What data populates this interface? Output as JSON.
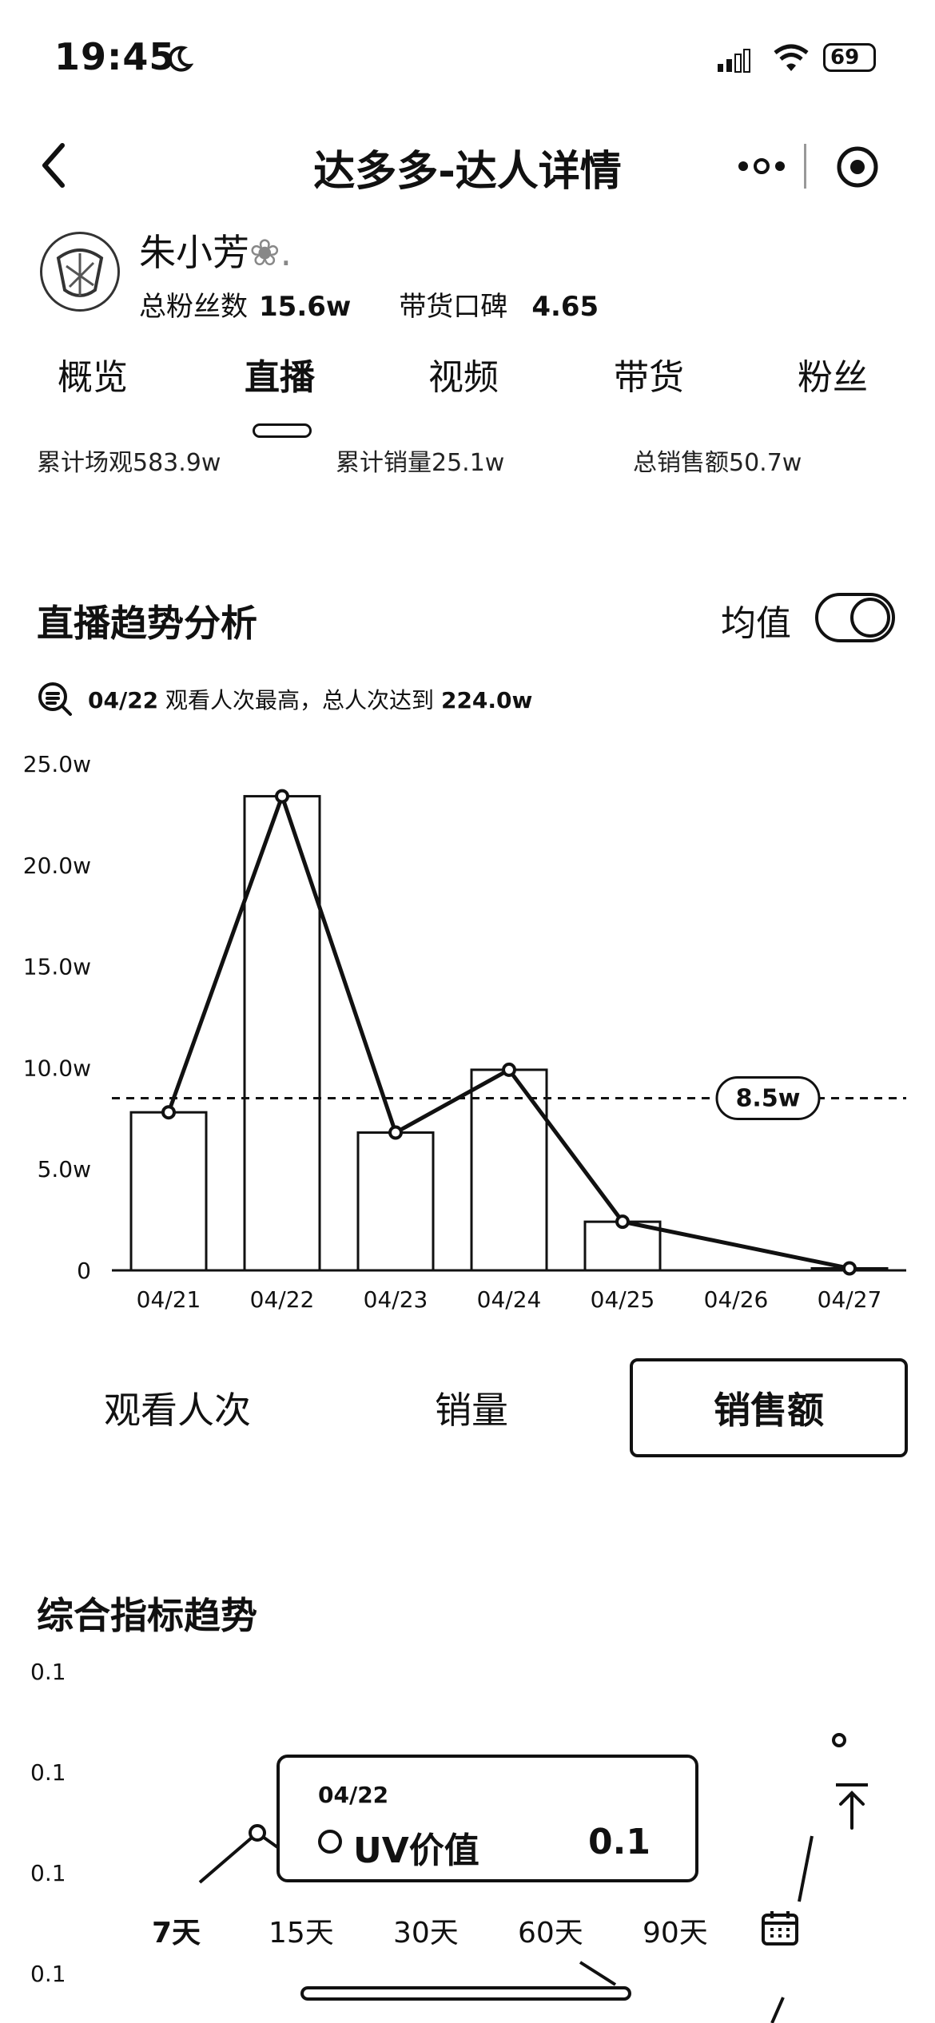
{
  "status_bar": {
    "time": "19:45",
    "battery": "69"
  },
  "nav": {
    "title": "达多多-达人详情"
  },
  "profile": {
    "name": "朱小芳",
    "name_suffix": "❀.",
    "fans_label": "总粉丝数",
    "fans_value": "15.6w",
    "rating_label": "带货口碑",
    "rating_value": "4.65"
  },
  "tabs": [
    "概览",
    "直播",
    "视频",
    "带货",
    "粉丝"
  ],
  "active_tab": "直播",
  "summary": {
    "views": "累计场观583.9w",
    "sales": "累计销量25.1w",
    "revenue": "总销售额50.7w"
  },
  "live_trend": {
    "title": "直播趋势分析",
    "avg_label": "均值",
    "insight_prefix": "04/22",
    "insight_text": " 观看人次最高，总人次达到 ",
    "insight_value": "224.0w"
  },
  "chart_data": [
    {
      "type": "bar",
      "title": "",
      "categories": [
        "04/21",
        "04/22",
        "04/23",
        "04/24",
        "04/25",
        "04/26",
        "04/27"
      ],
      "series": [
        {
          "type": "bar",
          "values": [
            7.8,
            23.4,
            6.8,
            9.9,
            2.4,
            0,
            0.1
          ]
        },
        {
          "type": "line",
          "values": [
            7.8,
            23.4,
            6.8,
            9.9,
            2.4,
            null,
            0.1
          ]
        }
      ],
      "y_ticks": [
        "0",
        "5.0w",
        "10.0w",
        "15.0w",
        "20.0w",
        "25.0w"
      ],
      "ylim": [
        0,
        25
      ],
      "average": {
        "value": 8.5,
        "label": "8.5w"
      }
    },
    {
      "type": "line",
      "title": "",
      "y_ticks": [
        "0.1",
        "0.1",
        "0.1",
        "0.1"
      ],
      "tooltip": {
        "date": "04/22",
        "series": "UV价值",
        "value": "0.1"
      }
    }
  ],
  "metrics": [
    "观看人次",
    "销量",
    "销售额"
  ],
  "active_metric": "销售额",
  "overall_trend": {
    "title": "综合指标趋势"
  },
  "ranges": [
    "7天",
    "15天",
    "30天",
    "60天",
    "90天"
  ],
  "active_range": "7天",
  "icons": {
    "back": "chevron-left-icon",
    "more": "more-dots-icon",
    "target": "target-icon",
    "insight": "search-list-icon",
    "calendar": "calendar-icon",
    "top": "back-to-top-icon"
  }
}
